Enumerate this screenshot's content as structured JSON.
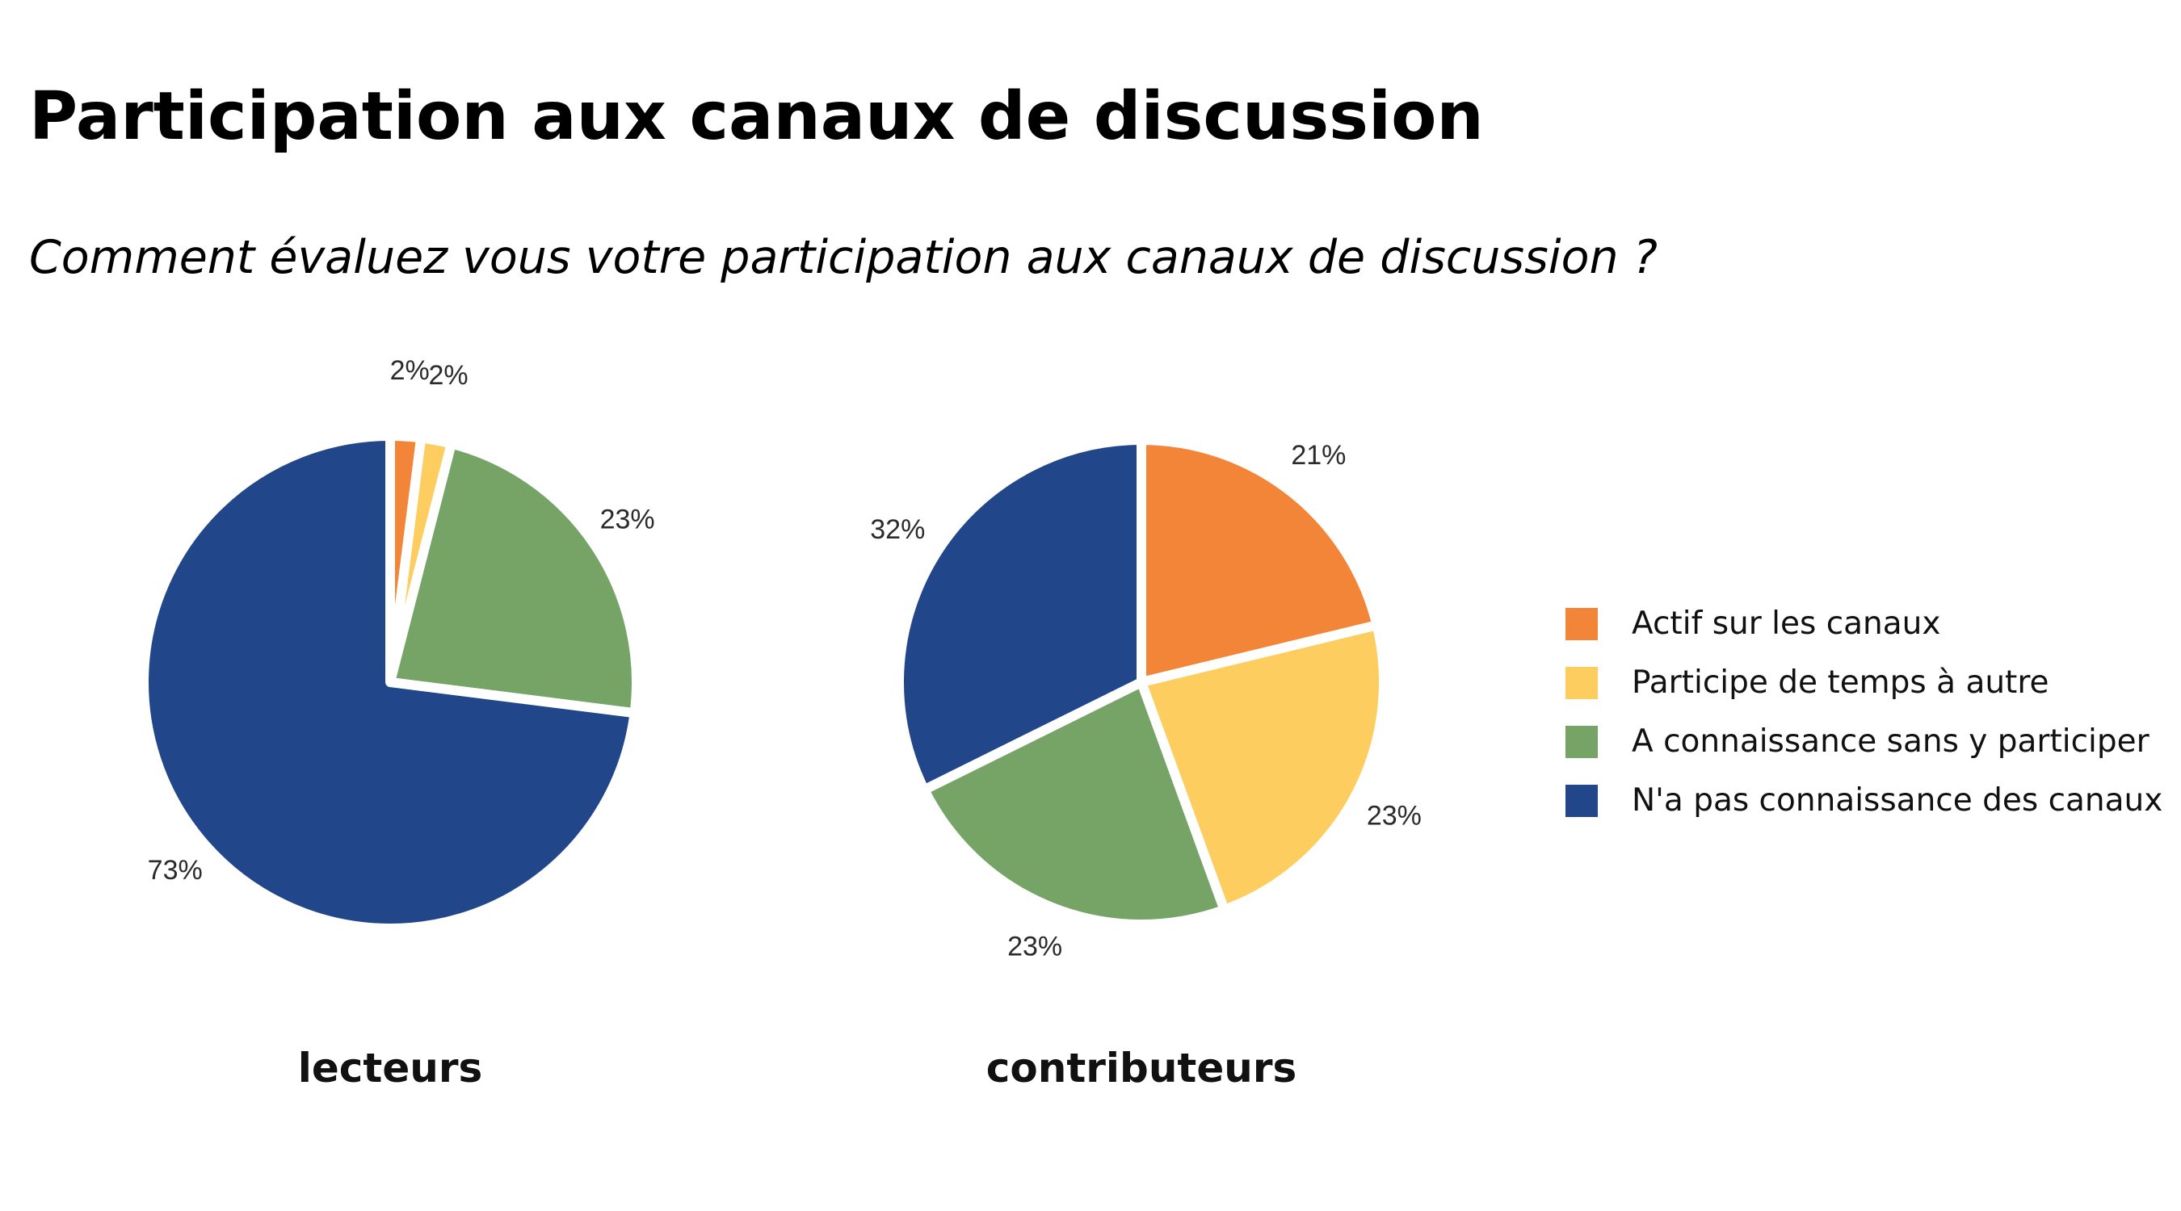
{
  "title": "Participation aux canaux de discussion",
  "subtitle": "Comment évaluez vous votre participation aux canaux de discussion ?",
  "colors": {
    "actif": "#F28537",
    "participe": "#FDCD5F",
    "connaissance": "#76A467",
    "pas_connaissance": "#22468A",
    "background": "#FFFFFF"
  },
  "legend": [
    {
      "label": "Actif sur les canaux",
      "color": "#F28537"
    },
    {
      "label": "Participe de temps à autre",
      "color": "#FDCD5F"
    },
    {
      "label": "A connaissance sans y participer",
      "color": "#76A467"
    },
    {
      "label": "N'a pas connaissance des canaux",
      "color": "#22468A"
    }
  ],
  "chart_data": [
    {
      "type": "pie",
      "title": "lecteurs",
      "categories": [
        "Actif sur les canaux",
        "Participe de temps à autre",
        "A connaissance sans y participer",
        "N'a pas connaissance des canaux"
      ],
      "values": [
        2,
        2,
        23,
        73
      ],
      "labels": [
        "2%",
        "2%",
        "23%",
        "73%"
      ],
      "colors": [
        "#F28537",
        "#FDCD5F",
        "#76A467",
        "#22468A"
      ],
      "legend": "right"
    },
    {
      "type": "pie",
      "title": "contributeurs",
      "categories": [
        "Actif sur les canaux",
        "Participe de temps à autre",
        "A connaissance sans y participer",
        "N'a pas connaissance des canaux"
      ],
      "values": [
        21,
        23,
        23,
        32
      ],
      "labels": [
        "21%",
        "23%",
        "23%",
        "32%"
      ],
      "colors": [
        "#F28537",
        "#FDCD5F",
        "#76A467",
        "#22468A"
      ],
      "legend": "right"
    }
  ]
}
